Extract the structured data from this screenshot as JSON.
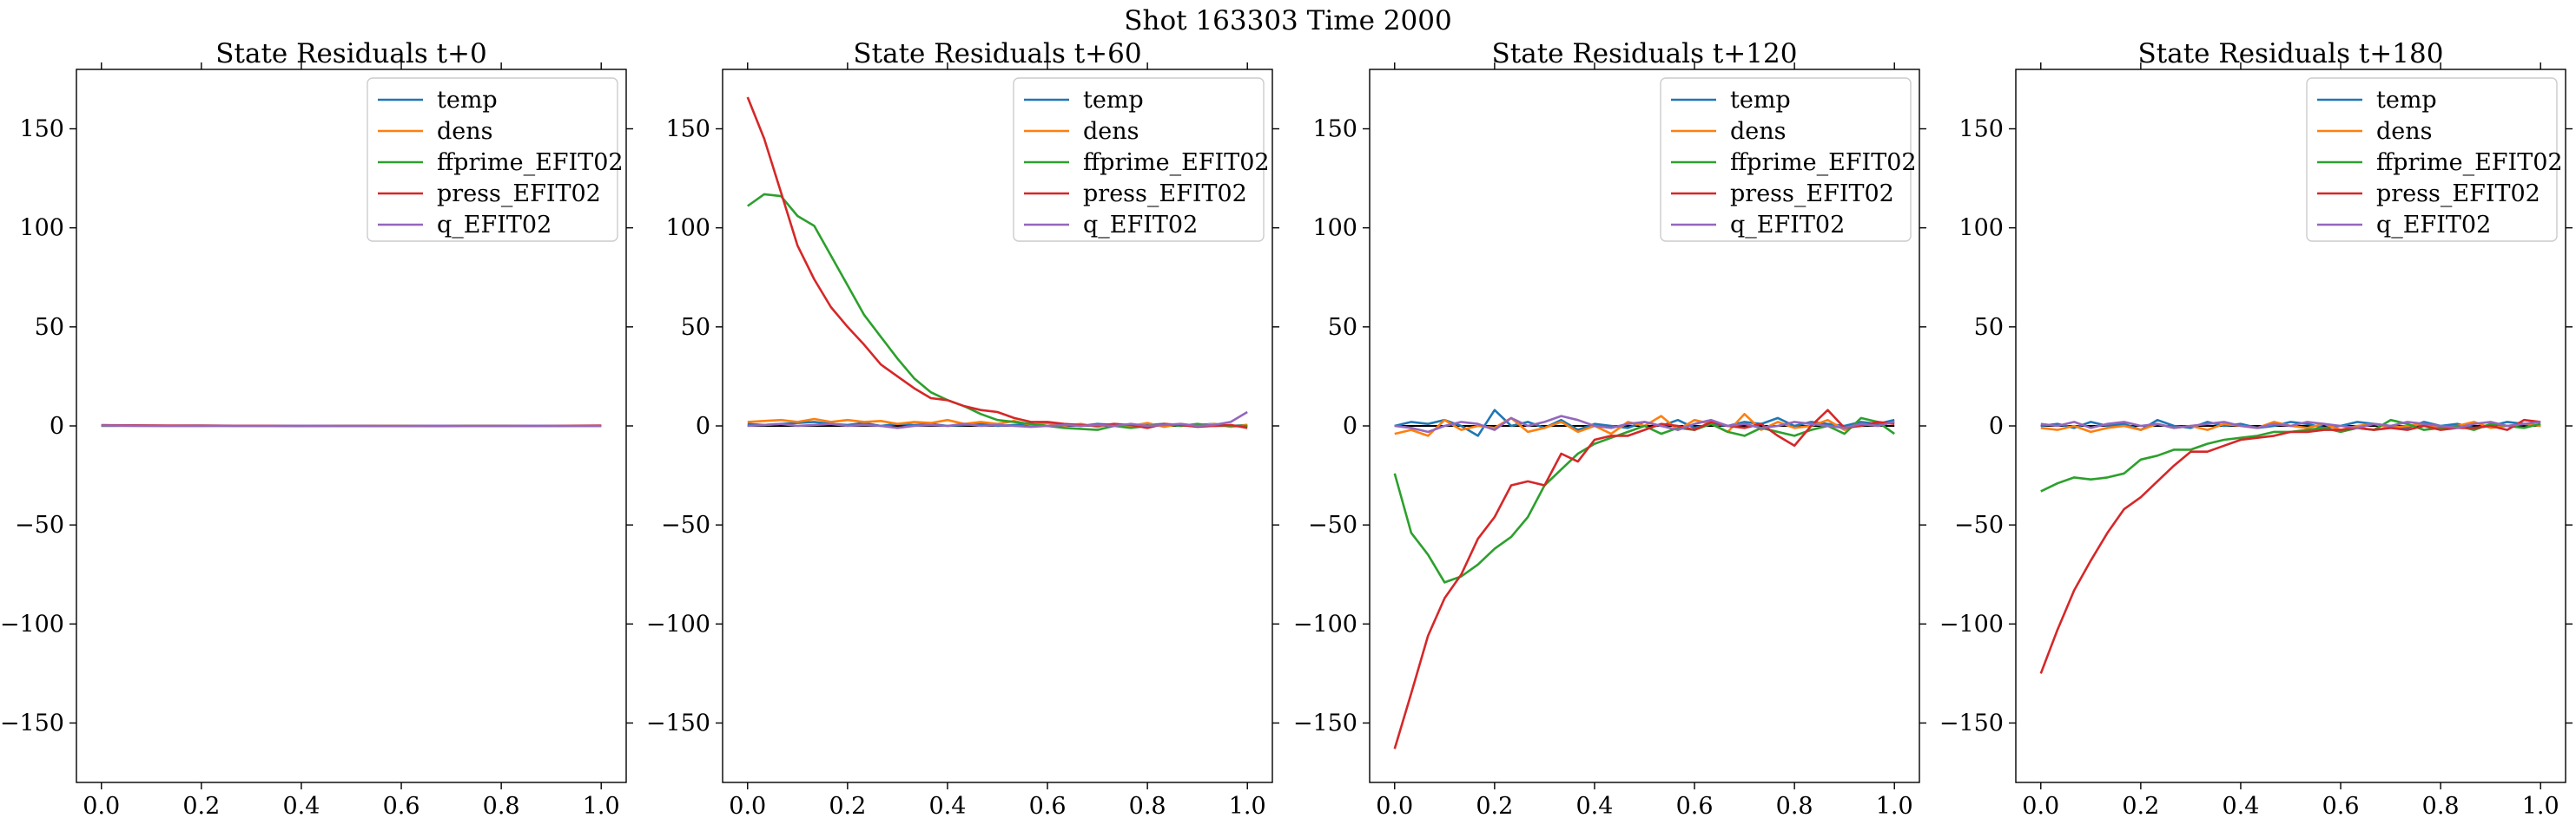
{
  "suptitle": "Shot 163303   Time 2000",
  "series_style": [
    {
      "key": "temp",
      "color": "#1f77b4"
    },
    {
      "key": "dens",
      "color": "#ff7f0e"
    },
    {
      "key": "ffprime_EFIT02",
      "color": "#2ca02c"
    },
    {
      "key": "press_EFIT02",
      "color": "#d62728"
    },
    {
      "key": "q_EFIT02",
      "color": "#9467bd"
    }
  ],
  "chart_data": [
    {
      "type": "line",
      "title": "State Residuals t+0",
      "xlim": [
        -0.05,
        1.05
      ],
      "ylim": [
        -180,
        180
      ],
      "xticks": [
        "0.0",
        "0.2",
        "0.4",
        "0.6",
        "0.8",
        "1.0"
      ],
      "yticks": [
        "−150",
        "−100",
        "−50",
        "0",
        "50",
        "100",
        "150"
      ],
      "legend_position": "top-right",
      "x": [
        0.0,
        0.0667,
        0.1333,
        0.2,
        0.2667,
        0.3333,
        0.4,
        0.4667,
        0.5333,
        0.6,
        0.6667,
        0.7333,
        0.8,
        0.8667,
        0.9333,
        1.0
      ],
      "series": [
        {
          "name": "temp",
          "values": [
            0.2,
            0.1,
            0.1,
            0,
            0.1,
            0,
            -0.1,
            0,
            0.1,
            0,
            -0.1,
            0,
            0.1,
            0,
            0,
            0.1
          ]
        },
        {
          "name": "dens",
          "values": [
            0.3,
            0.2,
            0.1,
            0.2,
            0,
            0.1,
            0,
            -0.1,
            0,
            0.1,
            0,
            0,
            -0.1,
            0,
            0.1,
            0
          ]
        },
        {
          "name": "ffprime_EFIT02",
          "values": [
            0,
            0.1,
            0,
            0,
            0.1,
            0,
            0,
            0,
            -0.1,
            0,
            0,
            0.1,
            0,
            0,
            0,
            0
          ]
        },
        {
          "name": "press_EFIT02",
          "values": [
            0.4,
            0.3,
            0.2,
            0.2,
            0.1,
            0.1,
            0,
            0,
            0,
            -0.1,
            -0.1,
            0,
            0,
            0,
            0.1,
            0.2
          ]
        },
        {
          "name": "q_EFIT02",
          "values": [
            0.2,
            0.1,
            0,
            0.1,
            0,
            0,
            0.1,
            0,
            0,
            0,
            0.1,
            0,
            0,
            0.1,
            0,
            0
          ]
        }
      ]
    },
    {
      "type": "line",
      "title": "State Residuals t+60",
      "xlim": [
        -0.05,
        1.05
      ],
      "ylim": [
        -180,
        180
      ],
      "xticks": [
        "0.0",
        "0.2",
        "0.4",
        "0.6",
        "0.8",
        "1.0"
      ],
      "yticks": [
        "−150",
        "−100",
        "−50",
        "0",
        "50",
        "100",
        "150"
      ],
      "legend_position": "top-right",
      "x": [
        0.0,
        0.0333,
        0.0667,
        0.1,
        0.1333,
        0.1667,
        0.2,
        0.2333,
        0.2667,
        0.3,
        0.3333,
        0.3667,
        0.4,
        0.4333,
        0.4667,
        0.5,
        0.5333,
        0.5667,
        0.6,
        0.6333,
        0.6667,
        0.7,
        0.7333,
        0.7667,
        0.8,
        0.8333,
        0.8667,
        0.9,
        0.9333,
        0.9667,
        1.0
      ],
      "series": [
        {
          "name": "temp",
          "values": [
            1,
            0.5,
            1,
            1.5,
            2,
            1,
            0.5,
            1.5,
            0,
            1,
            0.5,
            1,
            0,
            0.5,
            1,
            0,
            0.5,
            1,
            0,
            0.5,
            0,
            1,
            0.5,
            0,
            0.5,
            1,
            0,
            0.5,
            1,
            0,
            0.5
          ]
        },
        {
          "name": "dens",
          "values": [
            2,
            2.5,
            3,
            2,
            3.5,
            2,
            3,
            2,
            2.5,
            1,
            2,
            1.5,
            3,
            1,
            2,
            1,
            2.5,
            0.5,
            1.5,
            0,
            1,
            -0.5,
            1,
            0,
            1.5,
            -0.5,
            1,
            0,
            1,
            -0.5,
            0.5
          ]
        },
        {
          "name": "ffprime_EFIT02",
          "values": [
            111,
            117,
            116,
            106,
            101,
            86,
            71,
            56,
            45,
            34,
            24,
            17,
            13,
            10,
            6,
            3,
            2,
            1,
            0,
            -1,
            -1.5,
            -2,
            0,
            -1,
            0,
            1,
            0,
            1,
            0,
            0,
            0
          ]
        },
        {
          "name": "press_EFIT02",
          "values": [
            166,
            145,
            118,
            91,
            74,
            60,
            50,
            41,
            31,
            25,
            19,
            14,
            13,
            10,
            8,
            7,
            4,
            2,
            2,
            1,
            0.5,
            0,
            1,
            0.5,
            -1,
            1,
            0.5,
            -0.5,
            0,
            0.5,
            -1
          ]
        },
        {
          "name": "q_EFIT02",
          "values": [
            0,
            0.5,
            1,
            0,
            0.5,
            1,
            0,
            0.5,
            0,
            -1,
            0,
            0.5,
            0,
            1,
            0,
            0.5,
            0,
            -0.5,
            0,
            0.5,
            0,
            0.5,
            0,
            1,
            0,
            0.5,
            1,
            0,
            0.5,
            2,
            7
          ]
        }
      ]
    },
    {
      "type": "line",
      "title": "State Residuals t+120",
      "xlim": [
        -0.05,
        1.05
      ],
      "ylim": [
        -180,
        180
      ],
      "xticks": [
        "0.0",
        "0.2",
        "0.4",
        "0.6",
        "0.8",
        "1.0"
      ],
      "yticks": [
        "−150",
        "−100",
        "−50",
        "0",
        "50",
        "100",
        "150"
      ],
      "legend_position": "top-right",
      "x": [
        0.0,
        0.0333,
        0.0667,
        0.1,
        0.1333,
        0.1667,
        0.2,
        0.2333,
        0.2667,
        0.3,
        0.3333,
        0.3667,
        0.4,
        0.4333,
        0.4667,
        0.5,
        0.5333,
        0.5667,
        0.6,
        0.6333,
        0.6667,
        0.7,
        0.7333,
        0.7667,
        0.8,
        0.8333,
        0.8667,
        0.9,
        0.9333,
        0.9667,
        1.0
      ],
      "series": [
        {
          "name": "temp",
          "values": [
            0,
            2,
            1,
            3,
            0,
            -5,
            8,
            0,
            2,
            -1,
            3,
            -2,
            1,
            0,
            -1,
            2,
            0,
            3,
            -1,
            1,
            0,
            2,
            1,
            4,
            0,
            2,
            1,
            0,
            2,
            1,
            3
          ]
        },
        {
          "name": "dens",
          "values": [
            -4,
            -2,
            -5,
            3,
            -2,
            0,
            -1,
            4,
            -3,
            -1,
            2,
            -3,
            0,
            -4,
            2,
            0,
            5,
            -2,
            3,
            1,
            -3,
            6,
            -2,
            2,
            -1,
            0,
            3,
            -2,
            1,
            0,
            2
          ]
        },
        {
          "name": "ffprime_EFIT02",
          "values": [
            -24,
            -54,
            -65,
            -79,
            -76,
            -70,
            -62,
            -56,
            -46,
            -30,
            -22,
            -14,
            -9,
            -6,
            -3,
            0,
            -4,
            -1,
            -2,
            1,
            -3,
            -5,
            -1,
            -3,
            -5,
            -2,
            0,
            -4,
            4,
            2,
            -4
          ]
        },
        {
          "name": "press_EFIT02",
          "values": [
            -163,
            -135,
            -106,
            -87,
            -75,
            -57,
            -46,
            -30,
            -28,
            -30,
            -14,
            -18,
            -7,
            -5,
            -5,
            -2,
            1,
            0,
            -2,
            2,
            0,
            -1,
            1,
            -5,
            -10,
            0,
            8,
            -1,
            0,
            2,
            1
          ]
        },
        {
          "name": "q_EFIT02",
          "values": [
            0,
            -1,
            -3,
            0,
            2,
            1,
            -2,
            4,
            0,
            2,
            5,
            3,
            0,
            -1,
            1,
            2,
            0,
            -2,
            1,
            3,
            0,
            1,
            -1,
            0,
            2,
            1,
            0,
            -1,
            1,
            0,
            2
          ]
        }
      ]
    },
    {
      "type": "line",
      "title": "State Residuals t+180",
      "xlim": [
        -0.05,
        1.05
      ],
      "ylim": [
        -180,
        180
      ],
      "xticks": [
        "0.0",
        "0.2",
        "0.4",
        "0.6",
        "0.8",
        "1.0"
      ],
      "yticks": [
        "−150",
        "−100",
        "−50",
        "0",
        "50",
        "100",
        "150"
      ],
      "legend_position": "top-right",
      "x": [
        0.0,
        0.0333,
        0.0667,
        0.1,
        0.1333,
        0.1667,
        0.2,
        0.2333,
        0.2667,
        0.3,
        0.3333,
        0.3667,
        0.4,
        0.4333,
        0.4667,
        0.5,
        0.5333,
        0.5667,
        0.6,
        0.6333,
        0.6667,
        0.7,
        0.7333,
        0.7667,
        0.8,
        0.8333,
        0.8667,
        0.9,
        0.9333,
        0.9667,
        1.0
      ],
      "series": [
        {
          "name": "temp",
          "values": [
            0,
            1,
            -1,
            2,
            0,
            1,
            -2,
            3,
            0,
            -1,
            2,
            0,
            1,
            -1,
            0,
            2,
            1,
            -1,
            0,
            2,
            1,
            0,
            -1,
            2,
            0,
            1,
            -1,
            0,
            2,
            1,
            0
          ]
        },
        {
          "name": "dens",
          "values": [
            -1,
            -2,
            0,
            -3,
            -1,
            0,
            -2,
            1,
            -1,
            0,
            -2,
            1,
            0,
            -1,
            2,
            0,
            -1,
            1,
            -2,
            0,
            1,
            -1,
            0,
            1,
            -1,
            0,
            2,
            -1,
            0,
            1,
            0
          ]
        },
        {
          "name": "ffprime_EFIT02",
          "values": [
            -33,
            -29,
            -26,
            -27,
            -26,
            -24,
            -17,
            -15,
            -12,
            -12,
            -9,
            -7,
            -6,
            -5,
            -3,
            -3,
            -2,
            -1,
            -3,
            -1,
            -2,
            3,
            1,
            -2,
            -1,
            0,
            -2,
            1,
            0,
            -1,
            1
          ]
        },
        {
          "name": "press_EFIT02",
          "values": [
            -125,
            -103,
            -83,
            -68,
            -54,
            -42,
            -36,
            -28,
            -20,
            -13,
            -13,
            -10,
            -7,
            -6,
            -5,
            -3,
            -3,
            -2,
            -2,
            -1,
            -2,
            -1,
            -2,
            0,
            -2,
            -1,
            -1,
            0,
            -2,
            3,
            2
          ]
        },
        {
          "name": "q_EFIT02",
          "values": [
            1,
            0,
            2,
            -1,
            1,
            2,
            0,
            1,
            -1,
            0,
            1,
            2,
            0,
            -1,
            1,
            0,
            2,
            1,
            0,
            -1,
            1,
            0,
            2,
            1,
            0,
            -1,
            1,
            2,
            0,
            1,
            2
          ]
        }
      ]
    }
  ]
}
